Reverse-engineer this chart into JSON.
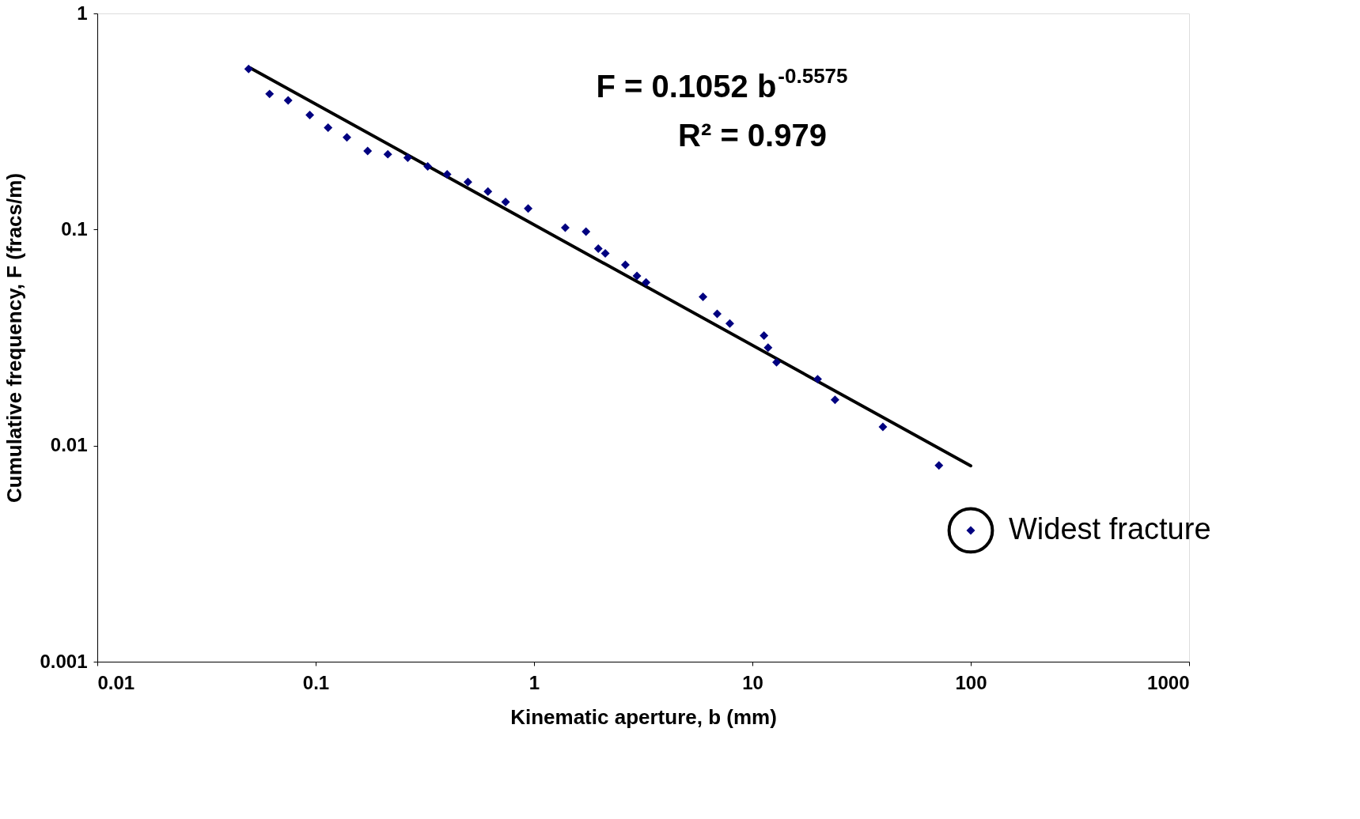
{
  "chart_data": {
    "type": "scatter",
    "xlabel": "Kinematic aperture, b (mm)",
    "ylabel": "Cumulative frequency, F (fracs/m)",
    "log": "xy",
    "grid": false,
    "marker": "diamond",
    "xlim": [
      0.01,
      1000
    ],
    "xticks": [
      0.01,
      0.1,
      1,
      10,
      100,
      1000
    ],
    "ylim": [
      0.001,
      1
    ],
    "yticks": [
      0.001,
      0.01,
      0.1,
      1
    ],
    "series": [
      {
        "color": "#000080",
        "x": [
          0.0493,
          0.0615,
          0.0748,
          0.094,
          0.114,
          0.139,
          0.173,
          0.214,
          0.264,
          0.326,
          0.4,
          0.498,
          0.615,
          0.741,
          0.94,
          1.39,
          1.73,
          1.97,
          2.12,
          2.62,
          2.96,
          3.26,
          5.94,
          6.9,
          7.88,
          11.3,
          11.8,
          12.9,
          19.9,
          23.9,
          39.6,
          71.5,
          100
        ],
        "values": [
          0.553,
          0.424,
          0.396,
          0.339,
          0.296,
          0.267,
          0.231,
          0.223,
          0.215,
          0.196,
          0.18,
          0.166,
          0.15,
          0.134,
          0.125,
          0.102,
          0.0977,
          0.0816,
          0.0775,
          0.0687,
          0.061,
          0.0569,
          0.0488,
          0.0407,
          0.0367,
          0.0323,
          0.0284,
          0.0243,
          0.0203,
          0.0163,
          0.0122,
          0.0081,
          0.00405
        ]
      },
      {
        "type": "line",
        "marker": "none",
        "line_style": "solid",
        "color": "#000000",
        "x": [
          0.05,
          100
        ],
        "values": [
          0.56,
          0.00806
        ]
      }
    ],
    "annotations": [
      "F = 0.1052 b$^{-0.5575}$",
      "R² = 0.979",
      {
        "text": "Widest fracture",
        "x": 100,
        "y": 0.00405
      }
    ]
  }
}
